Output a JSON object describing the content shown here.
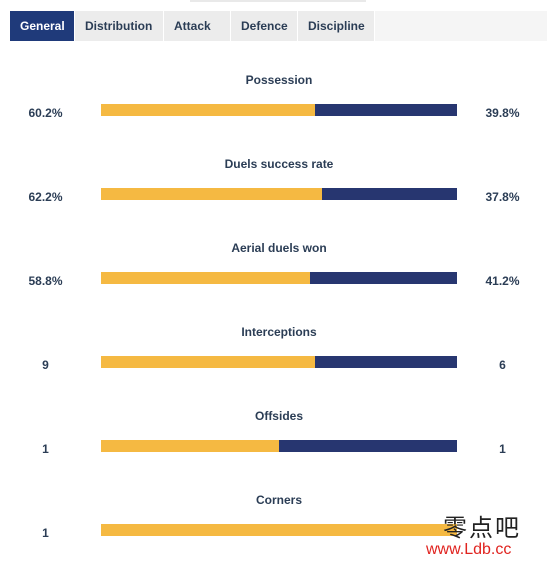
{
  "tabs": [
    {
      "label": "General",
      "active": true
    },
    {
      "label": "Distribution",
      "active": false
    },
    {
      "label": "Attack",
      "active": false
    },
    {
      "label": "Defence",
      "active": false
    },
    {
      "label": "Discipline",
      "active": false
    }
  ],
  "stats": [
    {
      "title": "Possession",
      "home": "60.2%",
      "away": "39.8%",
      "home_share": 0.602
    },
    {
      "title": "Duels success rate",
      "home": "62.2%",
      "away": "37.8%",
      "home_share": 0.622
    },
    {
      "title": "Aerial duels won",
      "home": "58.8%",
      "away": "41.2%",
      "home_share": 0.588
    },
    {
      "title": "Interceptions",
      "home": "9",
      "away": "6",
      "home_share": 0.6
    },
    {
      "title": "Offsides",
      "home": "1",
      "away": "1",
      "home_share": 0.5
    },
    {
      "title": "Corners",
      "home": "1",
      "away": "",
      "home_share": 1.0
    }
  ],
  "colors": {
    "home": "#f5b942",
    "away": "#273670",
    "tab_active": "#1f3a7a"
  },
  "watermark": {
    "chinese": "零点吧",
    "url": "www.Ldb.cc"
  }
}
